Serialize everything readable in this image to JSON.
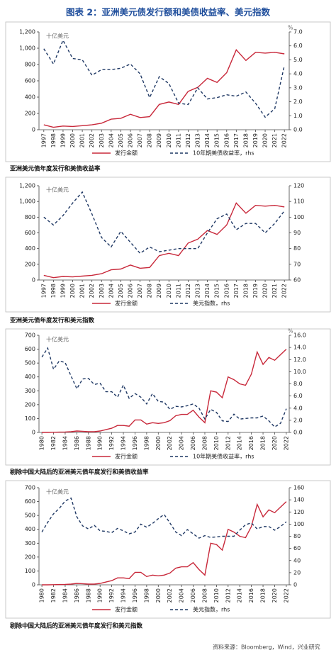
{
  "title": "图表 2：亚洲美元债发行额和美债收益率、美元指数",
  "source": "资料来源：Bloomberg，Wind，兴业研究",
  "chart_data": [
    {
      "type": "line",
      "caption": "亚洲美元债年度发行和美债收益率",
      "unit_label": "十亿美元",
      "unit_label_right": "%",
      "x": [
        1997,
        1998,
        1999,
        2000,
        2001,
        2002,
        2003,
        2004,
        2005,
        2006,
        2007,
        2008,
        2009,
        2010,
        2011,
        2012,
        2013,
        2014,
        2015,
        2016,
        2017,
        2018,
        2019,
        2020,
        2021,
        2022
      ],
      "xlim": [
        1996.5,
        2022.5
      ],
      "xticks": [
        1997,
        1998,
        1999,
        2000,
        2001,
        2002,
        2003,
        2004,
        2005,
        2006,
        2007,
        2008,
        2009,
        2010,
        2011,
        2012,
        2013,
        2014,
        2015,
        2016,
        2017,
        2018,
        2019,
        2020,
        2021,
        2022
      ],
      "ylim": [
        0,
        1200
      ],
      "yticks": [
        0,
        200,
        400,
        600,
        800,
        {
          "value": 1000,
          "label": "1,000"
        },
        {
          "value": 1200,
          "label": "1,200"
        }
      ],
      "y2lim": [
        0,
        7
      ],
      "y2ticks": [
        {
          "value": 0,
          "label": "0.0"
        },
        {
          "value": 1,
          "label": "1.0"
        },
        {
          "value": 2,
          "label": "2.0"
        },
        {
          "value": 3,
          "label": "3.0"
        },
        {
          "value": 4,
          "label": "4.0"
        },
        {
          "value": 5,
          "label": "5.0"
        },
        {
          "value": 6,
          "label": "6.0"
        },
        {
          "value": 7,
          "label": "7.0"
        }
      ],
      "series": [
        {
          "name": "发行金额",
          "color": "#c8283a",
          "line_style": "solid",
          "values": [
            60,
            30,
            45,
            40,
            50,
            60,
            80,
            130,
            140,
            190,
            150,
            160,
            310,
            340,
            310,
            470,
            520,
            630,
            580,
            700,
            980,
            850,
            950,
            940,
            950,
            930
          ]
        },
        {
          "name": "10年期美债收益率，rhs",
          "color": "#1f3864",
          "line_style": "dashed",
          "axis": "y2",
          "values": [
            5.8,
            4.7,
            6.4,
            5.1,
            5.0,
            3.9,
            4.3,
            4.3,
            4.4,
            4.7,
            4.0,
            2.3,
            3.8,
            3.3,
            1.9,
            1.8,
            3.0,
            2.2,
            2.3,
            2.5,
            2.4,
            2.7,
            1.9,
            0.9,
            1.5,
            4.6
          ]
        }
      ]
    },
    {
      "type": "line",
      "caption": "亚洲美元债年度发行和美元指数",
      "unit_label": "十亿美元",
      "x": [
        1997,
        1998,
        1999,
        2000,
        2001,
        2002,
        2003,
        2004,
        2005,
        2006,
        2007,
        2008,
        2009,
        2010,
        2011,
        2012,
        2013,
        2014,
        2015,
        2016,
        2017,
        2018,
        2019,
        2020,
        2021,
        2022
      ],
      "xlim": [
        1996.5,
        2022.5
      ],
      "xticks": [
        1997,
        1998,
        1999,
        2000,
        2001,
        2002,
        2003,
        2004,
        2005,
        2006,
        2007,
        2008,
        2009,
        2010,
        2011,
        2012,
        2013,
        2014,
        2015,
        2016,
        2017,
        2018,
        2019,
        2020,
        2021,
        2022
      ],
      "ylim": [
        0,
        1200
      ],
      "yticks": [
        0,
        200,
        400,
        600,
        800,
        {
          "value": 1000,
          "label": "1,000"
        },
        {
          "value": 1200,
          "label": "1,200"
        }
      ],
      "y2lim": [
        60,
        120
      ],
      "y2ticks": [
        60,
        70,
        80,
        90,
        100,
        110,
        120
      ],
      "series": [
        {
          "name": "发行金额",
          "color": "#c8283a",
          "line_style": "solid",
          "values": [
            60,
            30,
            45,
            40,
            50,
            60,
            80,
            130,
            140,
            190,
            150,
            160,
            310,
            340,
            310,
            470,
            520,
            630,
            580,
            700,
            980,
            850,
            950,
            940,
            950,
            930
          ]
        },
        {
          "name": "美元指数，rhs",
          "color": "#1f3864",
          "line_style": "dashed",
          "axis": "y2",
          "values": [
            100,
            95,
            101,
            109,
            116,
            102,
            87,
            81,
            91,
            84,
            77,
            81,
            78,
            79,
            80,
            80,
            80,
            90,
            99,
            102,
            92,
            96,
            96,
            90,
            96,
            104
          ]
        }
      ]
    },
    {
      "type": "line",
      "caption": "剔除中国大陆后的亚洲美元债年度发行和美债收益率",
      "unit_label": "十亿美元",
      "unit_label_right": "%",
      "x": [
        1980,
        1981,
        1982,
        1983,
        1984,
        1985,
        1986,
        1987,
        1988,
        1989,
        1990,
        1991,
        1992,
        1993,
        1994,
        1995,
        1996,
        1997,
        1998,
        1999,
        2000,
        2001,
        2002,
        2003,
        2004,
        2005,
        2006,
        2007,
        2008,
        2009,
        2010,
        2011,
        2012,
        2013,
        2014,
        2015,
        2016,
        2017,
        2018,
        2019,
        2020,
        2021,
        2022
      ],
      "xlim": [
        1979.5,
        2022.5
      ],
      "xticks": [
        1980,
        1982,
        1984,
        1986,
        1988,
        1990,
        1992,
        1994,
        1996,
        1998,
        2000,
        2002,
        2004,
        2006,
        2008,
        2010,
        2012,
        2014,
        2016,
        2018,
        2020,
        2022
      ],
      "ylim": [
        0,
        700
      ],
      "yticks": [
        0,
        100,
        200,
        300,
        400,
        500,
        600,
        700
      ],
      "y2lim": [
        0,
        16
      ],
      "y2ticks": [
        {
          "value": 0,
          "label": "0.0"
        },
        {
          "value": 2,
          "label": "2.0"
        },
        {
          "value": 4,
          "label": "4.0"
        },
        {
          "value": 6,
          "label": "6.0"
        },
        {
          "value": 8,
          "label": "8.0"
        },
        {
          "value": 10,
          "label": "10.0"
        },
        {
          "value": 12,
          "label": "12.0"
        },
        {
          "value": 14,
          "label": "14.0"
        },
        {
          "value": 16,
          "label": "16.0"
        }
      ],
      "series": [
        {
          "name": "发行金额",
          "color": "#c8283a",
          "line_style": "solid",
          "values": [
            0,
            0,
            1,
            2,
            3,
            5,
            10,
            8,
            5,
            5,
            10,
            20,
            30,
            50,
            50,
            45,
            90,
            90,
            60,
            70,
            65,
            70,
            85,
            120,
            130,
            130,
            160,
            110,
            70,
            300,
            290,
            250,
            400,
            380,
            350,
            340,
            420,
            580,
            490,
            540,
            520,
            560,
            600
          ]
        },
        {
          "name": "10年期美债收益率，rhs",
          "color": "#1f3864",
          "line_style": "dashed",
          "axis": "y2",
          "values": [
            12.4,
            13.9,
            10.4,
            11.8,
            11.5,
            9.3,
            7.2,
            8.8,
            8.9,
            7.9,
            8.1,
            6.7,
            6.7,
            5.8,
            7.8,
            5.6,
            6.4,
            5.8,
            4.7,
            6.4,
            5.1,
            5.0,
            3.8,
            4.3,
            4.2,
            4.4,
            4.7,
            4.0,
            2.2,
            3.8,
            3.3,
            1.9,
            1.8,
            3.0,
            2.2,
            2.3,
            2.4,
            2.4,
            2.7,
            1.9,
            0.9,
            1.5,
            3.9
          ]
        }
      ]
    },
    {
      "type": "line",
      "caption": "剔除中国大陆后的亚洲美元债年度发行和美元指数",
      "unit_label": "十亿美元",
      "x": [
        1980,
        1981,
        1982,
        1983,
        1984,
        1985,
        1986,
        1987,
        1988,
        1989,
        1990,
        1991,
        1992,
        1993,
        1994,
        1995,
        1996,
        1997,
        1998,
        1999,
        2000,
        2001,
        2002,
        2003,
        2004,
        2005,
        2006,
        2007,
        2008,
        2009,
        2010,
        2011,
        2012,
        2013,
        2014,
        2015,
        2016,
        2017,
        2018,
        2019,
        2020,
        2021,
        2022
      ],
      "xlim": [
        1979.5,
        2022.5
      ],
      "xticks": [
        1980,
        1982,
        1984,
        1986,
        1988,
        1990,
        1992,
        1994,
        1996,
        1998,
        2000,
        2002,
        2004,
        2006,
        2008,
        2010,
        2012,
        2014,
        2016,
        2018,
        2020,
        2022
      ],
      "ylim": [
        0,
        700
      ],
      "yticks": [
        0,
        100,
        200,
        300,
        400,
        500,
        600,
        700
      ],
      "y2lim": [
        0,
        160
      ],
      "y2ticks": [
        0,
        20,
        40,
        60,
        80,
        100,
        120,
        140,
        160
      ],
      "series": [
        {
          "name": "发行金额",
          "color": "#c8283a",
          "line_style": "solid",
          "values": [
            0,
            0,
            1,
            2,
            3,
            5,
            10,
            8,
            5,
            5,
            10,
            20,
            30,
            50,
            50,
            45,
            90,
            90,
            60,
            70,
            65,
            70,
            85,
            120,
            130,
            130,
            160,
            110,
            70,
            300,
            290,
            250,
            400,
            380,
            350,
            340,
            420,
            580,
            490,
            540,
            520,
            560,
            600
          ]
        },
        {
          "name": "美元指数，rhs",
          "color": "#1f3864",
          "line_style": "dashed",
          "axis": "y2",
          "values": [
            87,
            103,
            117,
            126,
            138,
            143,
            112,
            97,
            92,
            98,
            89,
            88,
            86,
            93,
            89,
            84,
            87,
            100,
            95,
            101,
            109,
            116,
            102,
            87,
            81,
            91,
            84,
            77,
            81,
            78,
            79,
            80,
            80,
            80,
            90,
            99,
            102,
            92,
            96,
            96,
            90,
            96,
            104
          ]
        }
      ]
    }
  ]
}
